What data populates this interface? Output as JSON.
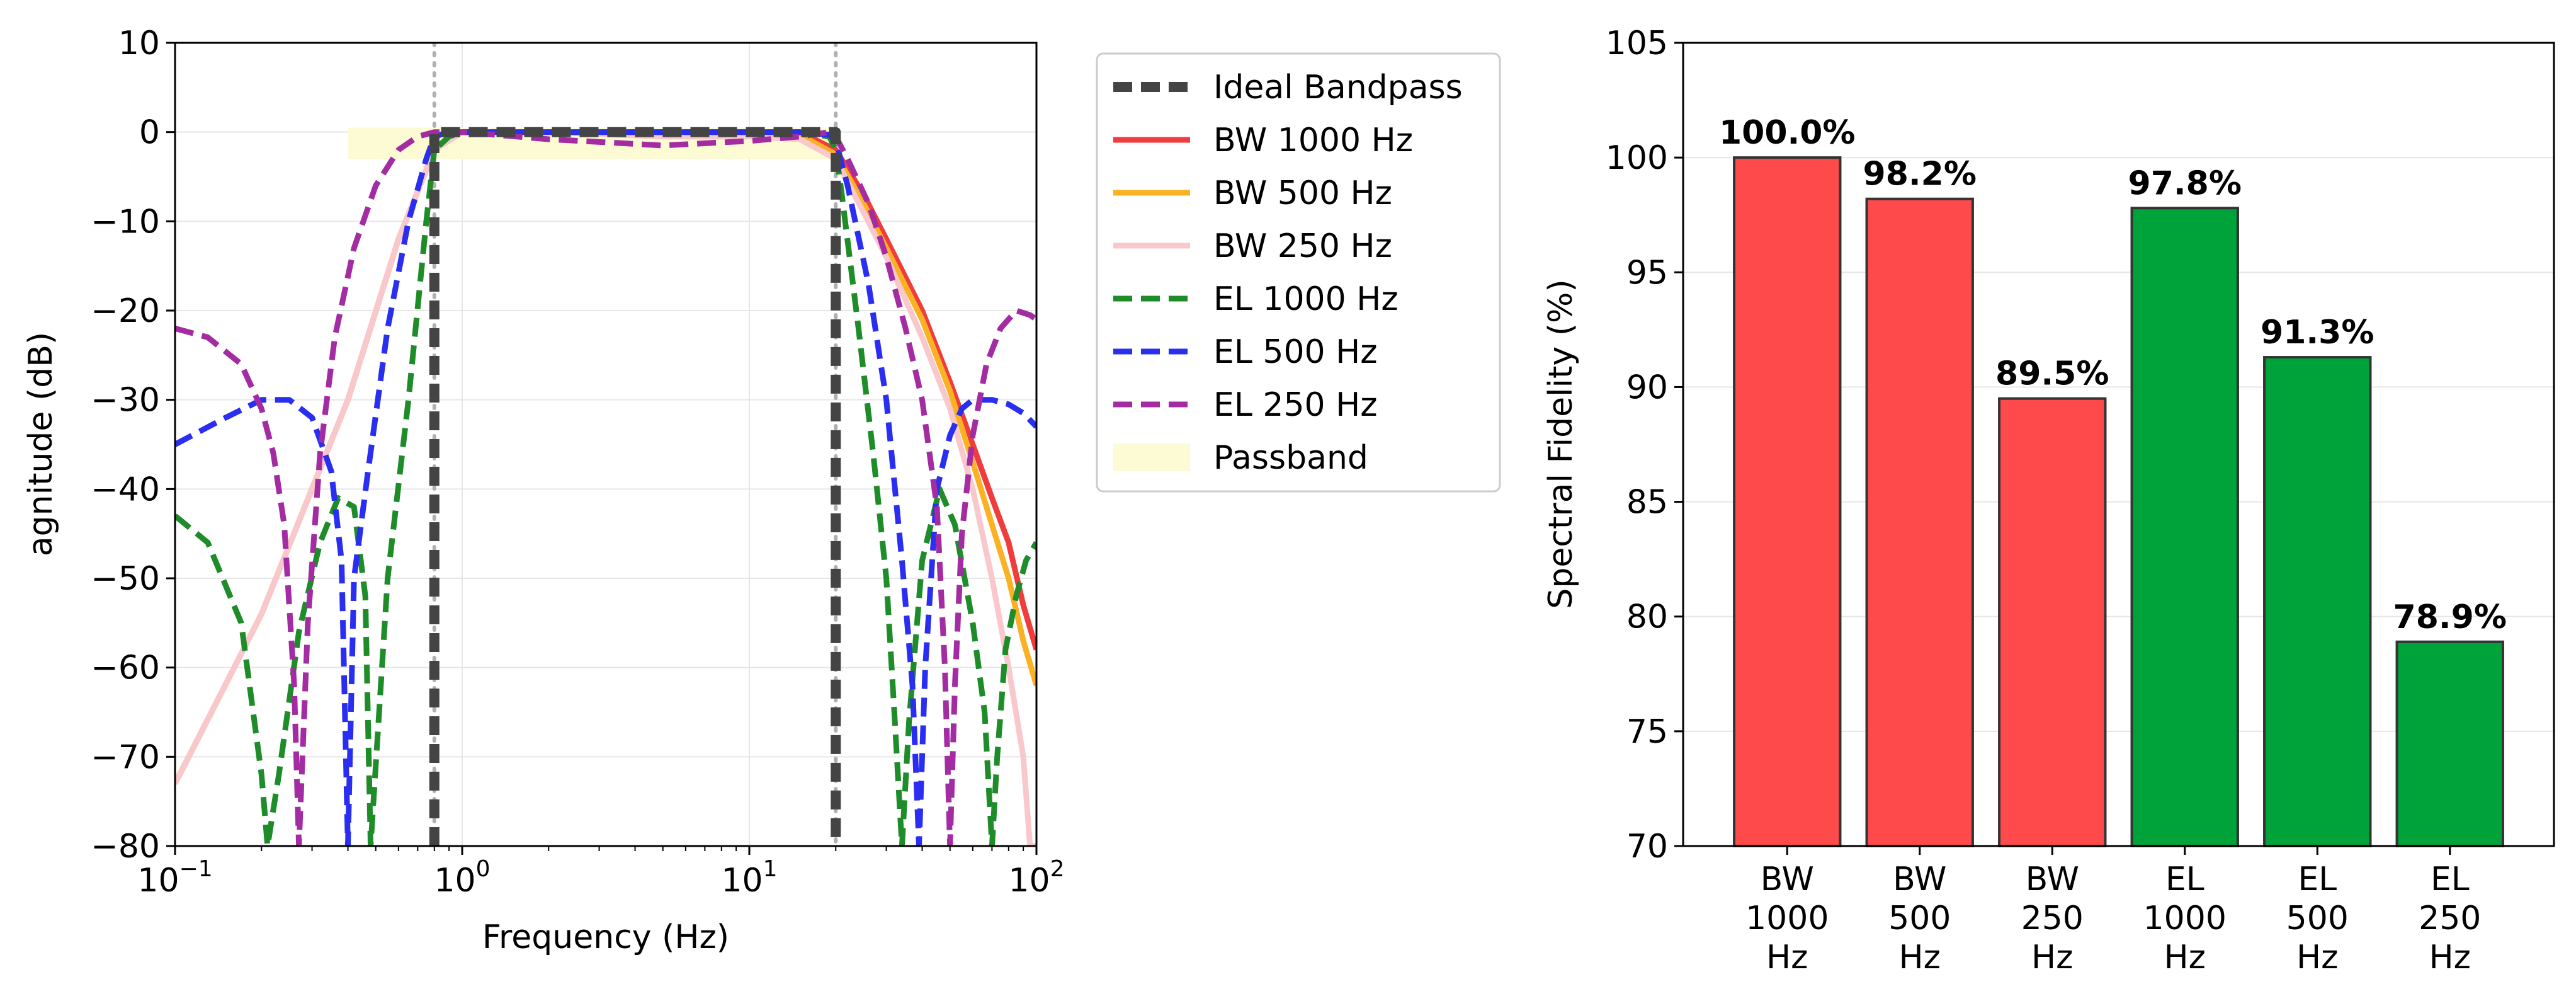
{
  "chart_data": [
    {
      "type": "line",
      "title": "",
      "xlabel": "Frequency (Hz)",
      "ylabel": "agnitude (dB)",
      "xscale": "log",
      "xlim": [
        0.1,
        100
      ],
      "ylim": [
        -80,
        10
      ],
      "grid": true,
      "legend_position": "outside-right",
      "x_ticks": [
        {
          "base": "10",
          "exp": "−1",
          "value": 0.1
        },
        {
          "base": "10",
          "exp": "0",
          "value": 1
        },
        {
          "base": "10",
          "exp": "1",
          "value": 10
        },
        {
          "base": "10",
          "exp": "2",
          "value": 100
        }
      ],
      "y_ticks": [
        "10",
        "0",
        "−10",
        "−20",
        "−30",
        "−40",
        "−50",
        "−60",
        "−70",
        "−80"
      ],
      "y_tick_values": [
        10,
        0,
        -10,
        -20,
        -30,
        -40,
        -50,
        -60,
        -70,
        -80
      ],
      "cutoffs_hz": [
        0.8,
        20
      ],
      "passband": {
        "name": "Passband",
        "x": [
          0.4,
          20
        ],
        "y": [
          -3,
          0.5
        ],
        "color": "#fdfbd3"
      },
      "series": [
        {
          "name": "Ideal Bandpass",
          "color": "#444444",
          "dash": "dashed",
          "x": [
            0.8,
            0.8,
            20,
            20
          ],
          "y": [
            -80,
            0,
            0,
            -80
          ]
        },
        {
          "name": "BW 1000 Hz",
          "color": "#f03c3c",
          "dash": "solid",
          "x": [
            0.1,
            0.2,
            0.4,
            0.6,
            0.8,
            1,
            2,
            5,
            10,
            15,
            20,
            25,
            30,
            40,
            50,
            60,
            70,
            80,
            90,
            100
          ],
          "y": [
            -73,
            -54,
            -30,
            -12,
            -2,
            0,
            0,
            0,
            0,
            0,
            -2,
            -7,
            -12,
            -20,
            -28,
            -35,
            -41,
            -46,
            -53,
            -58
          ]
        },
        {
          "name": "BW 500 Hz",
          "color": "#fbb124",
          "dash": "solid",
          "x": [
            0.1,
            0.2,
            0.4,
            0.6,
            0.8,
            1,
            2,
            5,
            10,
            15,
            20,
            25,
            30,
            40,
            50,
            60,
            70,
            80,
            90,
            100
          ],
          "y": [
            -73,
            -54,
            -30,
            -12,
            -2,
            0,
            0,
            0,
            0,
            -0.3,
            -2.5,
            -8,
            -13,
            -21,
            -29,
            -37,
            -44,
            -50,
            -57,
            -62
          ]
        },
        {
          "name": "BW 250 Hz",
          "color": "#f9c8cd",
          "dash": "solid",
          "x": [
            0.1,
            0.2,
            0.4,
            0.6,
            0.8,
            1,
            2,
            5,
            10,
            15,
            20,
            25,
            30,
            40,
            50,
            60,
            70,
            80,
            90,
            95,
            100
          ],
          "y": [
            -73,
            -54,
            -30,
            -12,
            -2,
            0,
            0,
            -0.5,
            -0.5,
            -0.8,
            -3,
            -9,
            -14,
            -23,
            -31,
            -40,
            -50,
            -60,
            -70,
            -80,
            -80
          ]
        },
        {
          "name": "EL 1000 Hz",
          "color": "#1e8c28",
          "dash": "dashed",
          "x": [
            0.1,
            0.13,
            0.17,
            0.2,
            0.21,
            0.23,
            0.27,
            0.32,
            0.37,
            0.42,
            0.46,
            0.48,
            0.55,
            0.65,
            0.75,
            0.8,
            0.9,
            1,
            2,
            5,
            10,
            15,
            19,
            20,
            21,
            24,
            27,
            30,
            32,
            34,
            36,
            40,
            46,
            52,
            60,
            66,
            70,
            73,
            78,
            85,
            92,
            100
          ],
          "y": [
            -43,
            -46,
            -55,
            -72,
            -80,
            -72,
            -56,
            -46,
            -41,
            -42,
            -52,
            -80,
            -50,
            -30,
            -10,
            -2,
            -0.5,
            0,
            0,
            0,
            0,
            0,
            -0.5,
            -2,
            -7,
            -22,
            -36,
            -50,
            -65,
            -80,
            -66,
            -48,
            -40,
            -44,
            -55,
            -65,
            -80,
            -70,
            -58,
            -52,
            -48,
            -46
          ]
        },
        {
          "name": "EL 500 Hz",
          "color": "#2a2ef0",
          "dash": "dashed",
          "x": [
            0.1,
            0.15,
            0.2,
            0.25,
            0.3,
            0.35,
            0.38,
            0.4,
            0.42,
            0.47,
            0.55,
            0.65,
            0.75,
            0.8,
            0.9,
            1,
            2,
            5,
            10,
            15,
            19,
            20,
            22,
            26,
            30,
            34,
            37,
            39,
            41,
            45,
            50,
            55,
            60,
            70,
            80,
            90,
            100
          ],
          "y": [
            -35,
            -32,
            -30,
            -30,
            -32,
            -38,
            -48,
            -80,
            -50,
            -38,
            -22,
            -10,
            -3,
            -0.5,
            0,
            0,
            0,
            0,
            0,
            0,
            -0.3,
            -1,
            -6,
            -17,
            -30,
            -48,
            -62,
            -80,
            -60,
            -40,
            -34,
            -31,
            -30,
            -30,
            -30.5,
            -31.5,
            -33
          ]
        },
        {
          "name": "EL 250 Hz",
          "color": "#a32ca3",
          "dash": "dashed",
          "x": [
            0.1,
            0.13,
            0.17,
            0.2,
            0.22,
            0.24,
            0.26,
            0.27,
            0.29,
            0.32,
            0.36,
            0.42,
            0.5,
            0.6,
            0.7,
            0.8,
            0.9,
            1,
            2,
            5,
            10,
            15,
            19,
            20,
            22,
            26,
            30,
            35,
            40,
            45,
            48,
            50,
            52,
            55,
            60,
            67,
            75,
            85,
            95,
            100
          ],
          "y": [
            -22,
            -23,
            -26,
            -31,
            -36,
            -44,
            -62,
            -80,
            -55,
            -36,
            -23,
            -13,
            -6,
            -2,
            -0.5,
            0,
            0,
            0,
            -0.8,
            -1.5,
            -1,
            -0.5,
            0,
            -0.5,
            -3,
            -8,
            -14,
            -22,
            -30,
            -42,
            -60,
            -80,
            -62,
            -45,
            -34,
            -26,
            -22,
            -20,
            -20.5,
            -21
          ]
        }
      ]
    },
    {
      "type": "bar",
      "title": "",
      "xlabel": "",
      "ylabel": "Spectral Fidelity (%)",
      "ylim": [
        70,
        105
      ],
      "grid": true,
      "y_ticks": [
        "105",
        "100",
        "95",
        "90",
        "85",
        "80",
        "75",
        "70"
      ],
      "y_tick_values": [
        105,
        100,
        95,
        90,
        85,
        80,
        75,
        70
      ],
      "categories": [
        [
          "BW",
          "1000",
          "Hz"
        ],
        [
          "BW",
          "500",
          "Hz"
        ],
        [
          "BW",
          "250",
          "Hz"
        ],
        [
          "EL",
          "1000",
          "Hz"
        ],
        [
          "EL",
          "500",
          "Hz"
        ],
        [
          "EL",
          "250",
          "Hz"
        ]
      ],
      "values": [
        100.0,
        98.2,
        89.5,
        97.8,
        91.3,
        78.9
      ],
      "value_labels": [
        "100.0%",
        "98.2%",
        "89.5%",
        "97.8%",
        "91.3%",
        "78.9%"
      ],
      "colors": [
        "#fe4a4a",
        "#fe4a4a",
        "#fe4a4a",
        "#00a33a",
        "#00a33a",
        "#00a33a"
      ]
    }
  ]
}
